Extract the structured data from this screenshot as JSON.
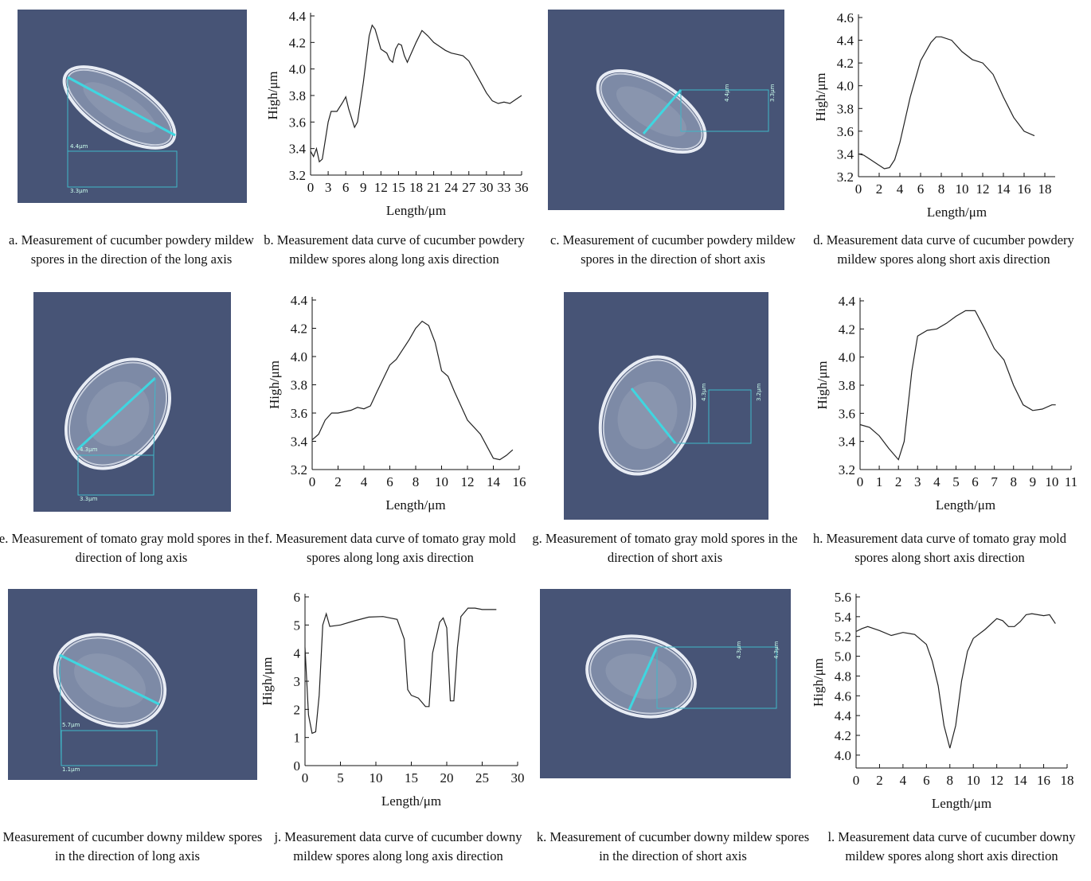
{
  "images": [
    {
      "caption": "a. Measurement of cucumber powdery mildew spores in the direction of the long axis",
      "labels": [
        "4.4μm",
        "3.3μm"
      ]
    },
    {
      "caption": "c. Measurement of cucumber powdery mildew spores in the direction of short axis",
      "labels": [
        "4.4μm",
        "3.3μm"
      ]
    },
    {
      "caption": "e. Measurement of tomato gray mold spores in the direction of long axis",
      "labels": [
        "4.3μm",
        "3.3μm"
      ]
    },
    {
      "caption": "g. Measurement of tomato gray mold spores in the direction of short axis",
      "labels": [
        "4.3μm",
        "3.2μm"
      ]
    },
    {
      "caption": "i. Measurement of cucumber downy mildew spores in the direction of long axis",
      "labels": [
        "5.7μm",
        "1.1μm"
      ]
    },
    {
      "caption": "k. Measurement of cucumber downy mildew spores in the direction of short axis",
      "labels": [
        "4.3μm",
        "4.3μm"
      ]
    }
  ],
  "chart_data": [
    {
      "type": "line",
      "caption": "b. Measurement data curve of cucumber powdery mildew spores along long axis direction",
      "x_label": "Length/μm",
      "y_label": "High/μm",
      "x": [
        0,
        0.5,
        1,
        1.5,
        2,
        3,
        3.5,
        4.5,
        5.5,
        6,
        6.5,
        7.5,
        8,
        9,
        10,
        10.5,
        11,
        12,
        13,
        13.5,
        14,
        14.5,
        15,
        15.5,
        16,
        16.5,
        17,
        18,
        19,
        20,
        21,
        22,
        23,
        24,
        25,
        26,
        27,
        28,
        29,
        30,
        31,
        32,
        33,
        34,
        35,
        36
      ],
      "series": [
        {
          "color": "#222222",
          "values": [
            3.38,
            3.34,
            3.4,
            3.3,
            3.32,
            3.6,
            3.68,
            3.68,
            3.75,
            3.79,
            3.7,
            3.56,
            3.6,
            3.9,
            4.25,
            4.33,
            4.3,
            4.15,
            4.12,
            4.07,
            4.05,
            4.15,
            4.19,
            4.18,
            4.1,
            4.05,
            4.1,
            4.2,
            4.29,
            4.25,
            4.2,
            4.17,
            4.14,
            4.12,
            4.11,
            4.1,
            4.06,
            3.98,
            3.9,
            3.82,
            3.76,
            3.74,
            3.75,
            3.74,
            3.77,
            3.8
          ]
        }
      ],
      "xlim": [
        0,
        36
      ],
      "xticks": [
        0,
        3,
        6,
        9,
        12,
        15,
        18,
        21,
        24,
        27,
        30,
        33,
        36
      ],
      "ylim": [
        3.2,
        4.4
      ],
      "yticks": [
        3.2,
        3.4,
        3.6,
        3.8,
        {
          "value": 4,
          "label": "4.0"
        },
        4.2,
        4.4
      ]
    },
    {
      "type": "line",
      "caption": "d. Measurement data curve of cucumber powdery mildew spores along short axis direction",
      "x_label": "Length/μm",
      "y_label": "High/μm",
      "x": [
        0,
        0.5,
        1,
        2,
        2.5,
        3,
        3.5,
        4,
        5,
        6,
        7,
        7.5,
        8,
        9,
        10,
        11,
        12,
        13,
        14,
        15,
        16,
        17
      ],
      "series": [
        {
          "color": "#222222",
          "values": [
            3.4,
            3.39,
            3.36,
            3.3,
            3.27,
            3.28,
            3.35,
            3.5,
            3.9,
            4.22,
            4.38,
            4.43,
            4.43,
            4.4,
            4.3,
            4.23,
            4.2,
            4.1,
            3.9,
            3.72,
            3.6,
            3.56
          ]
        }
      ],
      "xlim": [
        0,
        19
      ],
      "xticks": [
        0,
        2,
        4,
        6,
        8,
        10,
        12,
        14,
        16,
        18
      ],
      "ylim": [
        3.2,
        4.6
      ],
      "yticks": [
        3.2,
        3.4,
        3.6,
        3.8,
        {
          "value": 4,
          "label": "4.0"
        },
        4.2,
        4.4,
        4.6
      ]
    },
    {
      "type": "line",
      "caption": "f. Measurement data curve of tomato gray mold spores along long axis direction",
      "x_label": "Length/μm",
      "y_label": "High/μm",
      "x": [
        0,
        0.5,
        1,
        1.5,
        2,
        3,
        3.5,
        4,
        4.5,
        5,
        6,
        6.5,
        7,
        7.5,
        8,
        8.5,
        9,
        9.5,
        10,
        10.5,
        11,
        12,
        13,
        14,
        14.5,
        15,
        15.5
      ],
      "series": [
        {
          "color": "#222222",
          "values": [
            3.41,
            3.45,
            3.55,
            3.6,
            3.6,
            3.62,
            3.64,
            3.63,
            3.65,
            3.75,
            3.94,
            3.98,
            4.05,
            4.12,
            4.2,
            4.25,
            4.22,
            4.1,
            3.9,
            3.86,
            3.75,
            3.55,
            3.45,
            3.28,
            3.27,
            3.3,
            3.34
          ]
        }
      ],
      "xlim": [
        0,
        16
      ],
      "xticks": [
        0,
        2,
        4,
        6,
        8,
        10,
        12,
        14,
        16
      ],
      "ylim": [
        3.2,
        4.4
      ],
      "yticks": [
        3.2,
        3.4,
        3.6,
        3.8,
        {
          "value": 4,
          "label": "4.0"
        },
        4.2,
        4.4
      ]
    },
    {
      "type": "line",
      "caption": "h. Measurement data curve of tomato gray mold spores along short axis direction",
      "x_label": "Length/μm",
      "y_label": "High/μm",
      "x": [
        0,
        0.5,
        1,
        1.5,
        2,
        2.3,
        2.7,
        3,
        3.5,
        4,
        4.5,
        5,
        5.5,
        6,
        6.5,
        7,
        7.5,
        8,
        8.5,
        9,
        9.5,
        10,
        10.2
      ],
      "series": [
        {
          "color": "#222222",
          "values": [
            3.52,
            3.5,
            3.44,
            3.35,
            3.27,
            3.4,
            3.9,
            4.15,
            4.19,
            4.2,
            4.24,
            4.29,
            4.33,
            4.33,
            4.2,
            4.06,
            3.98,
            3.8,
            3.66,
            3.62,
            3.63,
            3.66,
            3.66
          ]
        }
      ],
      "xlim": [
        0,
        11
      ],
      "xticks": [
        0,
        1,
        2,
        3,
        4,
        5,
        6,
        7,
        8,
        9,
        10,
        11
      ],
      "ylim": [
        3.2,
        4.4
      ],
      "yticks": [
        3.2,
        3.4,
        3.6,
        3.8,
        {
          "value": 4,
          "label": "4.0"
        },
        4.2,
        4.4
      ]
    },
    {
      "type": "line",
      "caption": "j. Measurement data curve of cucumber downy mildew spores along long axis direction",
      "x_label": "Length/μm",
      "y_label": "High/μm",
      "x": [
        0,
        0.5,
        1,
        1.5,
        2,
        2.5,
        3,
        3.5,
        5,
        7,
        9,
        11,
        13,
        14,
        14.5,
        15,
        16,
        17,
        17.5,
        18,
        19,
        19.5,
        20,
        20.5,
        21,
        21.5,
        22,
        23,
        24,
        25,
        27
      ],
      "series": [
        {
          "color": "#222222",
          "values": [
            4.2,
            1.8,
            1.15,
            1.2,
            2.5,
            5,
            5.4,
            4.95,
            5,
            5.15,
            5.28,
            5.3,
            5.2,
            4.5,
            2.7,
            2.5,
            2.4,
            2.1,
            2.1,
            4,
            5.1,
            5.25,
            4.9,
            2.3,
            2.3,
            4.2,
            5.3,
            5.6,
            5.6,
            5.55,
            5.55
          ]
        }
      ],
      "xlim": [
        0,
        30
      ],
      "xticks": [
        0,
        5,
        10,
        15,
        20,
        25,
        30
      ],
      "ylim": [
        0,
        6
      ],
      "yticks": [
        0,
        1,
        2,
        3,
        4,
        5,
        6
      ]
    },
    {
      "type": "line",
      "caption": "l. Measurement data curve of cucumber downy mildew spores along short axis direction",
      "x_label": "Length/μm",
      "y_label": "High/μm",
      "x": [
        0,
        0.5,
        1,
        2,
        3,
        4,
        5,
        6,
        6.5,
        7,
        7.5,
        8,
        8.5,
        9,
        9.5,
        10,
        11,
        12,
        12.5,
        13,
        13.5,
        14,
        14.5,
        15,
        16,
        16.5,
        17
      ],
      "series": [
        {
          "color": "#222222",
          "values": [
            5.25,
            5.28,
            5.3,
            5.26,
            5.21,
            5.24,
            5.22,
            5.12,
            4.95,
            4.7,
            4.3,
            4.07,
            4.3,
            4.75,
            5.05,
            5.18,
            5.27,
            5.38,
            5.36,
            5.3,
            5.3,
            5.35,
            5.42,
            5.43,
            5.41,
            5.42,
            5.33
          ]
        }
      ],
      "xlim": [
        0,
        18
      ],
      "xticks": [
        0,
        2,
        4,
        6,
        8,
        10,
        12,
        14,
        16,
        18
      ],
      "ylim": [
        3.87,
        5.6
      ],
      "yticks": [
        {
          "value": 4,
          "label": "4.0"
        },
        4.2,
        4.4,
        4.6,
        4.8,
        {
          "value": 5,
          "label": "5.0"
        },
        5.2,
        5.4,
        5.6
      ]
    }
  ]
}
